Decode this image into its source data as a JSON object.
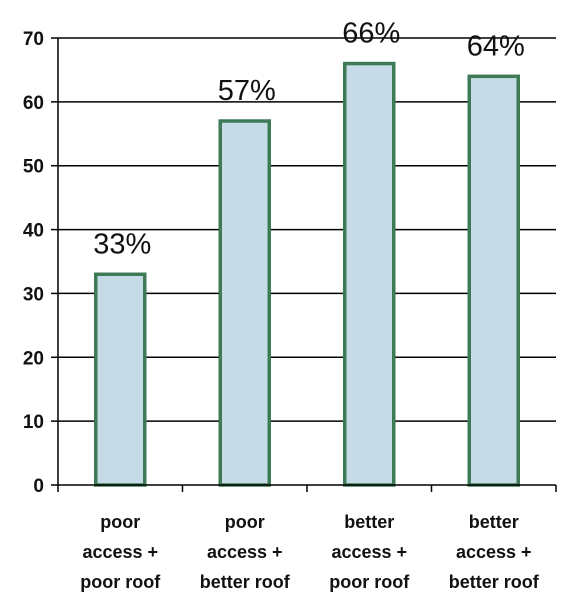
{
  "chart_data": {
    "type": "bar",
    "categories": [
      [
        "poor",
        "access +",
        "poor roof"
      ],
      [
        "poor",
        "access +",
        "better roof"
      ],
      [
        "better",
        "access +",
        "poor roof"
      ],
      [
        "better",
        "access +",
        "better roof"
      ]
    ],
    "values": [
      33,
      57,
      66,
      64
    ],
    "data_labels": [
      "33%",
      "57%",
      "66%",
      "64%"
    ],
    "ylim": [
      0,
      70
    ],
    "yticks": [
      0,
      10,
      20,
      30,
      40,
      50,
      60,
      70
    ],
    "grid": true,
    "legend": "none",
    "title": "",
    "xlabel": "",
    "ylabel": "",
    "colors": {
      "bar_fill": "#c5dbe8",
      "bar_stroke": "#3e7a55",
      "grid": "#000000",
      "axis": "#000000"
    }
  }
}
